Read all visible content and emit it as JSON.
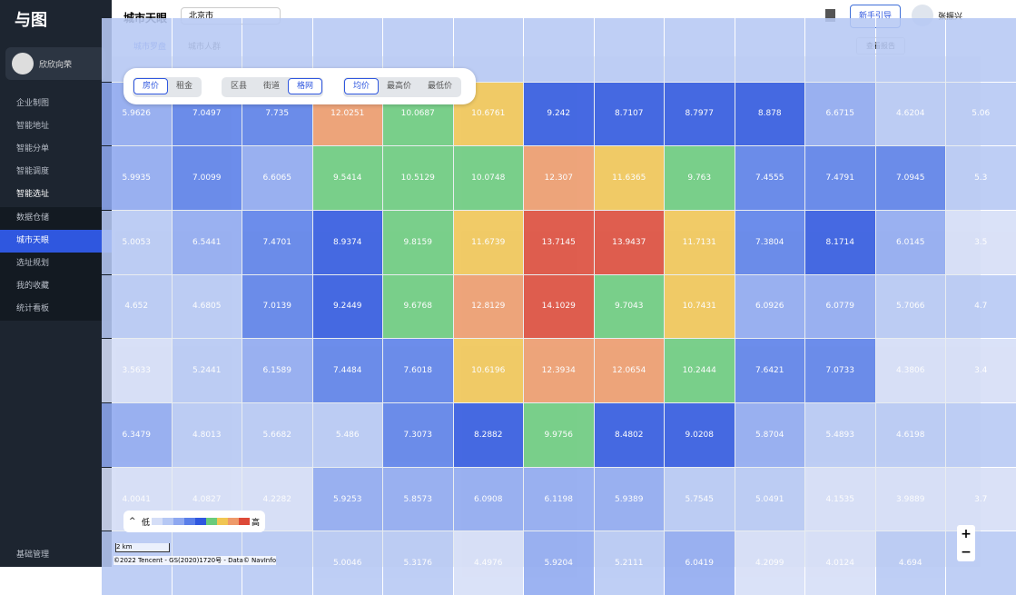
{
  "sidebar": {
    "logo": "与图",
    "user": "欣欣向荣",
    "menu": [
      "企业制图",
      "智能地址",
      "智能分单",
      "智能调度",
      "智能选址"
    ],
    "submenu": [
      "数据仓储",
      "城市天眼",
      "选址规划",
      "我的收藏",
      "统计看板"
    ],
    "active": 1,
    "bottom": "基础管理"
  },
  "header": {
    "title": "城市天眼",
    "city": "北京市",
    "guide": "新手引导",
    "user": "张振兴"
  },
  "tabs": {
    "items": [
      "城市罗盘",
      "城市人群"
    ],
    "active": 0,
    "report": "查看报告"
  },
  "toolbar": {
    "group1": [
      "房价",
      "租金"
    ],
    "group2": [
      "区县",
      "街道",
      "格网"
    ],
    "group3": [
      "均价",
      "最高价",
      "最低价"
    ]
  },
  "grid": {
    "rows": [
      [
        5.9626,
        7.0497,
        7.735,
        12.0251,
        10.0687,
        10.6761,
        9.242,
        8.7107,
        8.7977,
        8.878,
        6.6715,
        4.6204,
        5.06
      ],
      [
        5.9935,
        7.0099,
        6.6065,
        9.5414,
        10.5129,
        10.0748,
        12.307,
        11.6365,
        9.763,
        7.4555,
        7.4791,
        7.0945,
        5.3
      ],
      [
        5.0053,
        6.5441,
        7.4701,
        8.9374,
        9.8159,
        11.6739,
        13.7145,
        13.9437,
        11.7131,
        7.3804,
        8.1714,
        6.0145,
        3.5
      ],
      [
        4.652,
        4.6805,
        7.0139,
        9.2449,
        9.6768,
        12.8129,
        14.1029,
        9.7043,
        10.7431,
        6.0926,
        6.0779,
        5.7066,
        4.7
      ],
      [
        3.5633,
        5.2441,
        6.1589,
        7.4484,
        7.6018,
        10.6196,
        12.3934,
        12.0654,
        10.2444,
        7.6421,
        7.0733,
        4.3806,
        3.4
      ],
      [
        6.3479,
        4.8013,
        5.6682,
        5.486,
        7.3073,
        8.2882,
        9.9756,
        8.4802,
        9.0208,
        5.8704,
        5.4893,
        4.6198,
        null
      ],
      [
        4.0041,
        4.0827,
        4.2282,
        5.9253,
        5.8573,
        6.0908,
        6.1198,
        5.9389,
        5.7545,
        5.0491,
        4.1535,
        3.9889,
        3.7
      ],
      [
        null,
        null,
        null,
        5.0046,
        5.3176,
        4.4976,
        5.9204,
        5.2111,
        6.0419,
        4.2099,
        4.0124,
        4.694,
        null
      ]
    ]
  },
  "legend": {
    "low": "低",
    "high": "高",
    "colors": [
      "#d5def7",
      "#b6c8f4",
      "#8ea8f0",
      "#5a7fe9",
      "#2f57df",
      "#6acb7c",
      "#f1c653",
      "#ee9a6a",
      "#dd4a38"
    ]
  },
  "map": {
    "scale": "2 km",
    "attribution": "©2022 Tencent - GS(2020)1720号 - Data© NavInfo"
  }
}
